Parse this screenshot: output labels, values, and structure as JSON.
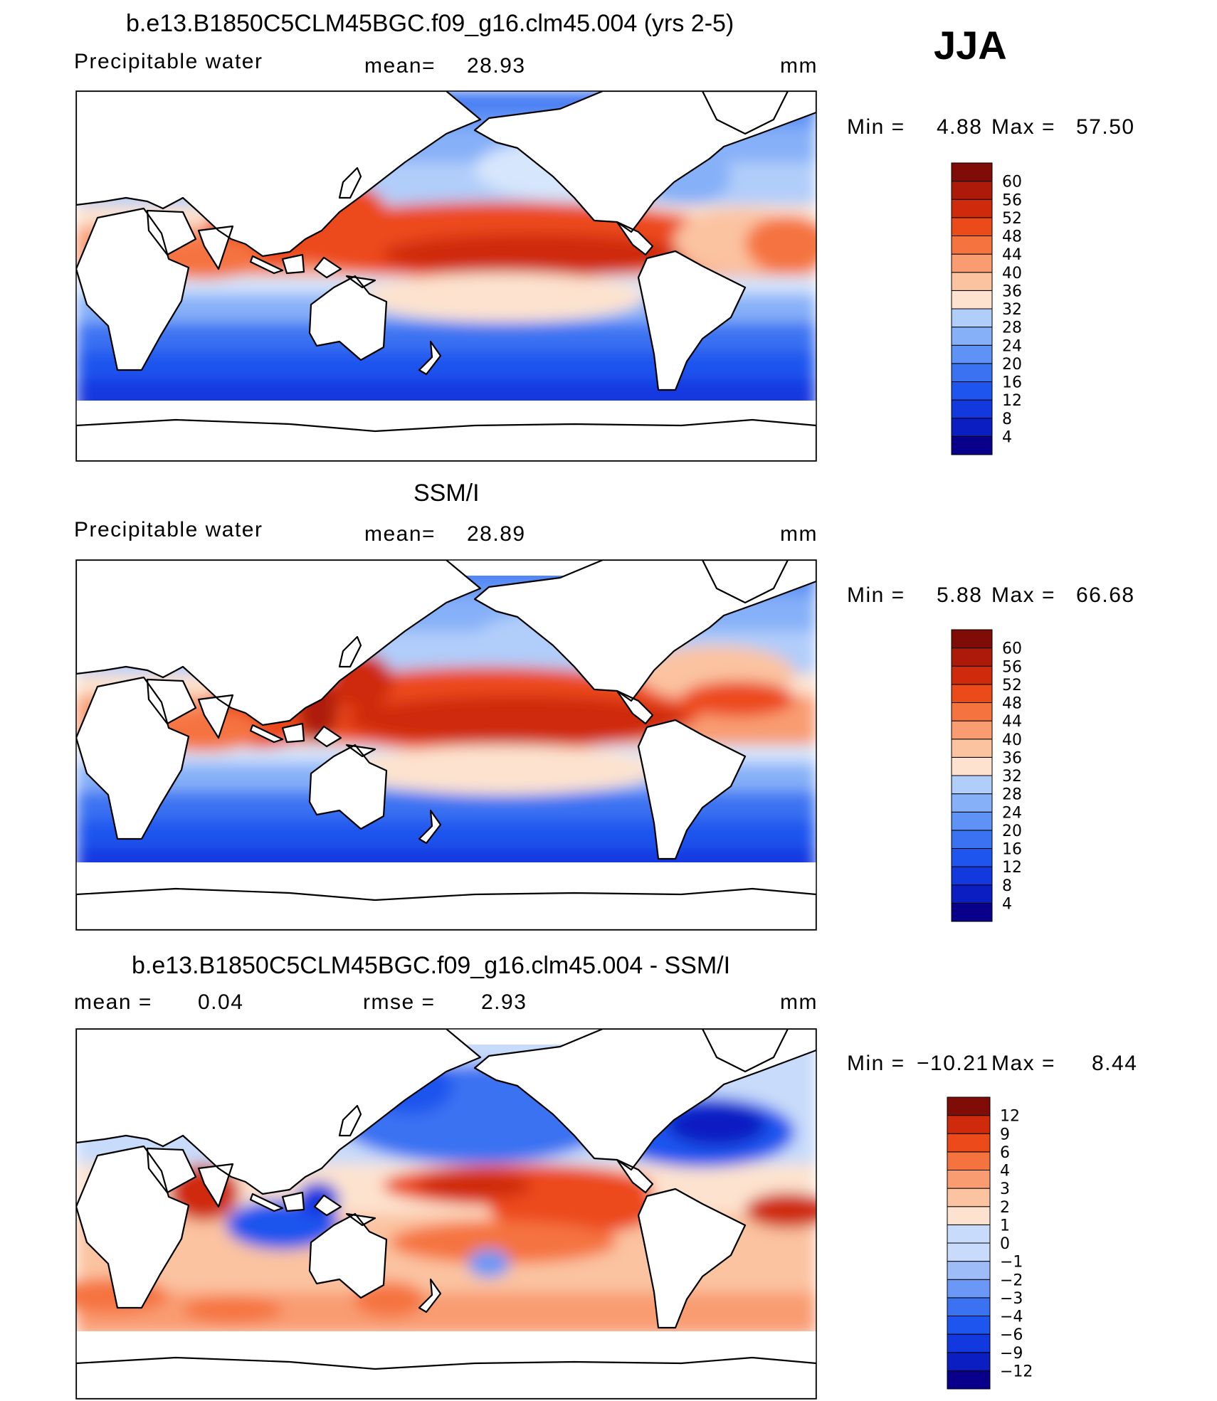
{
  "season": "JJA",
  "variable": "Precipitable water",
  "units": "mm",
  "colors": {
    "abs_scale": [
      "#08008a",
      "#0a1ec2",
      "#1238e0",
      "#1e55ee",
      "#3a72f2",
      "#5f92f6",
      "#86b0f8",
      "#b1cdfa",
      "#d6e6fc",
      "#fde3cf",
      "#fbc3a0",
      "#f99c72",
      "#f5733f",
      "#ec4a1a",
      "#cf2a0c",
      "#ae1a0a",
      "#7f0c06"
    ],
    "diff_scale": [
      "#08008a",
      "#0a1ec2",
      "#1238e0",
      "#1e55ee",
      "#3a72f2",
      "#6b98f6",
      "#9ebdf8",
      "#c8dbfa",
      "#fde3cf",
      "#fbc3a0",
      "#f99c72",
      "#f5733f",
      "#ec4a1a",
      "#cf2a0c",
      "#7f0c06"
    ]
  },
  "panels": [
    {
      "title": "b.e13.B1850C5CLM45BGC.f09_g16.clm45.004 (yrs 2-5)",
      "left_label": "Precipitable water",
      "stat_label": "mean=",
      "stat_value": "28.93",
      "units": "mm",
      "min_label": "Min  =",
      "min_value": "4.88",
      "max_label": "Max  =",
      "max_value": "57.50"
    },
    {
      "title": "SSM/I",
      "left_label": "Precipitable water",
      "stat_label": "mean=",
      "stat_value": "28.89",
      "units": "mm",
      "min_label": "Min  =",
      "min_value": "5.88",
      "max_label": "Max  =",
      "max_value": "66.68"
    },
    {
      "title": "b.e13.B1850C5CLM45BGC.f09_g16.clm45.004 - SSM/I",
      "mean_label": "mean  =",
      "mean_value": "0.04",
      "rmse_label": "rmse  =",
      "rmse_value": "2.93",
      "units": "mm",
      "min_label": "Min  =",
      "min_value": "−10.21",
      "max_label": "Max  =",
      "max_value": "8.44"
    }
  ],
  "chart_data": [
    {
      "type": "heatmap",
      "title": "b.e13.B1850C5CLM45BGC.f09_g16.clm45.004 (yrs 2-5)",
      "subtitle": "Precipitable water",
      "units": "mm",
      "mean": 28.93,
      "min": 4.88,
      "max": 57.5,
      "colorbar_levels": [
        4,
        8,
        12,
        16,
        20,
        24,
        28,
        32,
        36,
        40,
        44,
        48,
        52,
        56,
        60
      ]
    },
    {
      "type": "heatmap",
      "title": "SSM/I",
      "subtitle": "Precipitable water",
      "units": "mm",
      "mean": 28.89,
      "min": 5.88,
      "max": 66.68,
      "colorbar_levels": [
        4,
        8,
        12,
        16,
        20,
        24,
        28,
        32,
        36,
        40,
        44,
        48,
        52,
        56,
        60
      ]
    },
    {
      "type": "heatmap",
      "title": "b.e13.B1850C5CLM45BGC.f09_g16.clm45.004 - SSM/I",
      "units": "mm",
      "mean": 0.04,
      "rmse": 2.93,
      "min": -10.21,
      "max": 8.44,
      "colorbar_levels": [
        -12,
        -9,
        -6,
        -4,
        -3,
        -2,
        -1,
        0,
        1,
        2,
        3,
        4,
        6,
        9,
        12
      ],
      "colorbar_labels": [
        "−12",
        "−9",
        "−6",
        "−4",
        "−3",
        "−2",
        "−1",
        "0",
        "1",
        "2",
        "3",
        "4",
        "6",
        "9",
        "12"
      ]
    }
  ]
}
